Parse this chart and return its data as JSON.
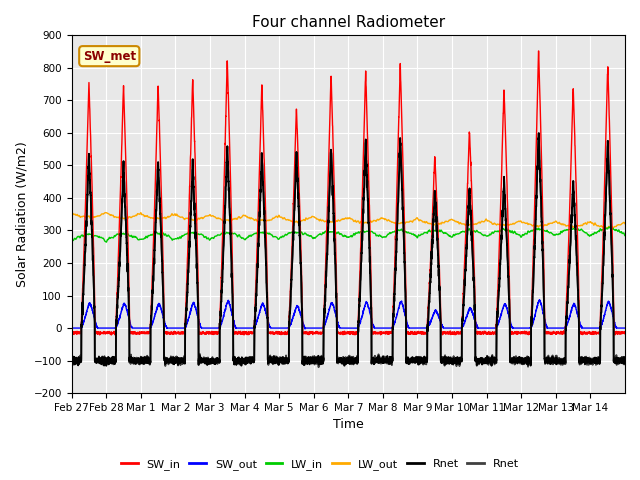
{
  "title": "Four channel Radiometer",
  "xlabel": "Time",
  "ylabel": "Solar Radiation (W/m2)",
  "ylim": [
    -200,
    900
  ],
  "yticks": [
    -200,
    -100,
    0,
    100,
    200,
    300,
    400,
    500,
    600,
    700,
    800,
    900
  ],
  "annotation_label": "SW_met",
  "plot_bg_color": "#e8e8e8",
  "colors": {
    "SW_in": "#ff0000",
    "SW_out": "#0000ff",
    "LW_in": "#00cc00",
    "LW_out": "#ffaa00",
    "Rnet_black": "#000000",
    "Rnet_dark": "#404040"
  },
  "legend_entries": [
    "SW_in",
    "SW_out",
    "LW_in",
    "LW_out",
    "Rnet",
    "Rnet"
  ],
  "legend_colors": [
    "#ff0000",
    "#0000ff",
    "#00cc00",
    "#ffaa00",
    "#000000",
    "#404040"
  ],
  "n_days": 16,
  "date_labels": [
    "Feb 27",
    "Feb 28",
    "Mar 1",
    "Mar 2",
    "Mar 3",
    "Mar 4",
    "Mar 5",
    "Mar 6",
    "Mar 7",
    "Mar 8",
    "Mar 9",
    "Mar 10",
    "Mar 11",
    "Mar 12",
    "Mar 13",
    "Mar 14"
  ],
  "grid_color": "#ffffff",
  "title_fontsize": 11,
  "axis_fontsize": 9,
  "tick_fontsize": 7.5,
  "SW_in_night": -15,
  "SW_out_night": 0,
  "LW_in_base": 268,
  "LW_out_base": 355,
  "Rnet_night": -100
}
